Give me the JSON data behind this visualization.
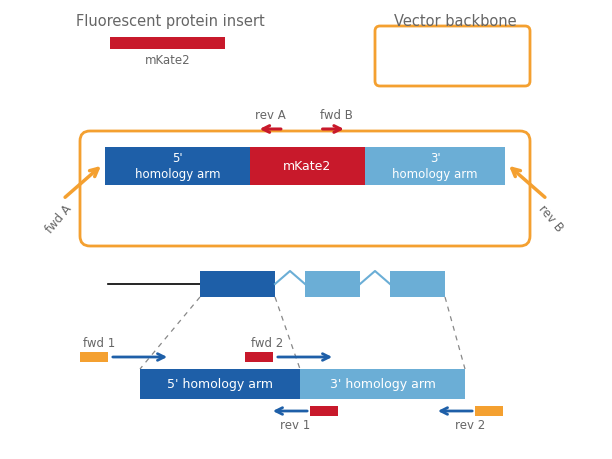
{
  "bg_color": "#ffffff",
  "orange": "#F4A030",
  "blue_dark": "#1E5FA8",
  "blue_light": "#6BAED6",
  "red": "#C8192B",
  "gray_text": "#666666",
  "title1": "Fluorescent protein insert",
  "title2": "Vector backbone",
  "label_5arm": "5'\nhomology arm",
  "label_3arm": "3'\nhomology arm",
  "label_mkate2": "mKate2",
  "label_rev_a": "rev A",
  "label_fwd_b": "fwd B",
  "label_fwd_a": "fwd A",
  "label_rev_b": "rev B",
  "label_fwd1": "fwd 1",
  "label_fwd2": "fwd 2",
  "label_rev1": "rev 1",
  "label_rev2": "rev 2",
  "label_5hom_bottom": "5' homology arm",
  "label_3hom_bottom": "3' homology arm"
}
